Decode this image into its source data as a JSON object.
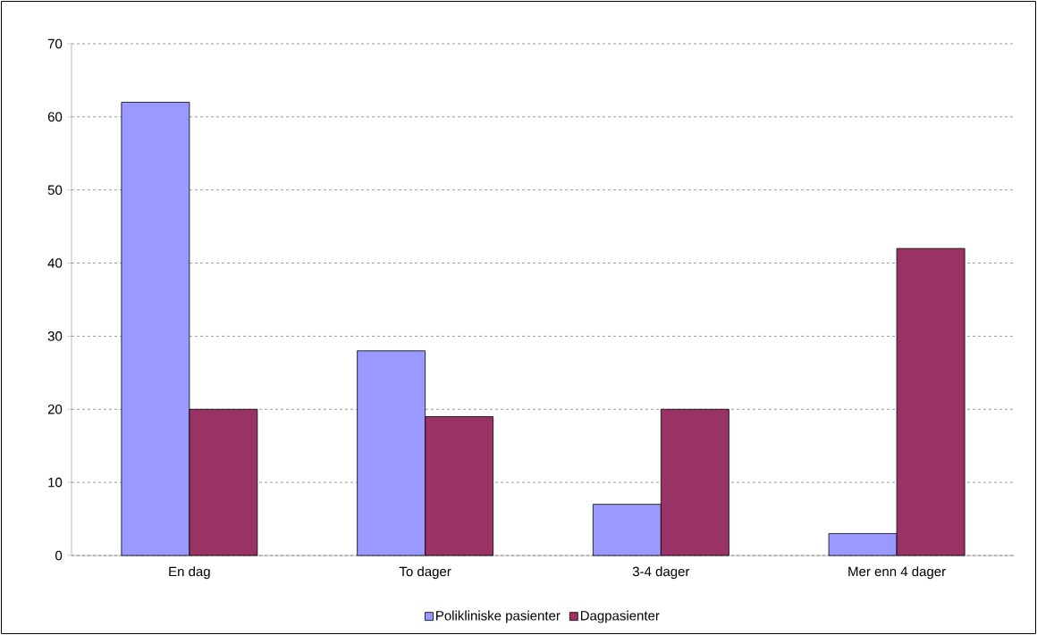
{
  "chart_data": {
    "type": "bar",
    "categories": [
      "En dag",
      "To dager",
      "3-4 dager",
      "Mer enn 4 dager"
    ],
    "series": [
      {
        "name": "Polikliniske pasienter",
        "color": "#9999ff",
        "values": [
          62,
          28,
          7,
          3
        ]
      },
      {
        "name": "Dagpasienter",
        "color": "#993366",
        "values": [
          20,
          19,
          20,
          42
        ]
      }
    ],
    "ylim": [
      0,
      70
    ],
    "yticks": [
      0,
      10,
      20,
      30,
      40,
      50,
      60,
      70
    ],
    "grid": "y",
    "legend": "bottom"
  }
}
